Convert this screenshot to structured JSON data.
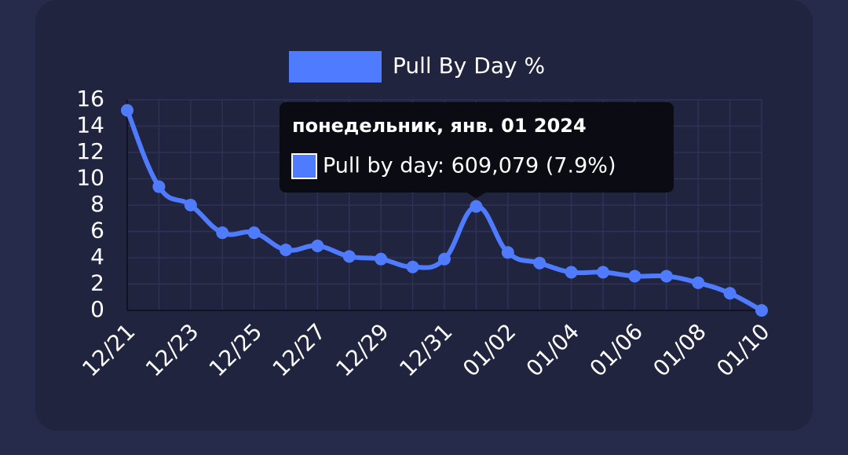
{
  "chart_data": {
    "type": "line",
    "categories": [
      "12/21",
      null,
      "12/23",
      null,
      "12/25",
      null,
      "12/27",
      null,
      "12/29",
      null,
      "12/31",
      null,
      "01/02",
      null,
      "01/04",
      null,
      "01/06",
      null,
      "01/08",
      null,
      "01/10"
    ],
    "series": [
      {
        "name": "Pull By Day %",
        "color": "#4f7bff",
        "values": [
          15.2,
          9.4,
          8.0,
          5.9,
          5.9,
          4.6,
          4.9,
          4.1,
          3.9,
          3.3,
          3.9,
          7.9,
          4.4,
          3.6,
          2.9,
          2.9,
          2.6,
          2.6,
          2.1,
          1.3,
          0
        ]
      }
    ],
    "ylim": [
      0,
      16
    ],
    "yticks": [
      0,
      2,
      4,
      6,
      8,
      10,
      12,
      14,
      16
    ],
    "grid": true,
    "legend": "top",
    "tooltip": {
      "title": "понедельник, янв. 01 2024",
      "label": "Pull by day: 609,079 (7.9%)",
      "index": 11
    }
  }
}
